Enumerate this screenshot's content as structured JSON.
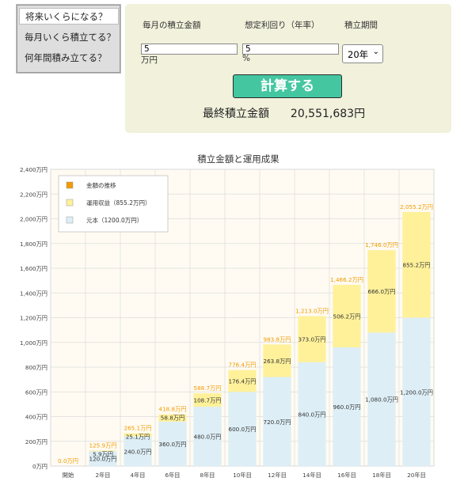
{
  "tabs": [
    "将来いくらになる？",
    "毎月いくら積立てる？",
    "何年間積み立てる？"
  ],
  "form": {
    "monthly_label": "毎月の積立金額",
    "rate_label": "想定利回り（年率）",
    "period_label": "積立期間",
    "monthly_value": "5",
    "monthly_unit": "万円",
    "rate_value": "5",
    "rate_unit": "%",
    "period_value": "20年",
    "calc_button": "計算する",
    "result_label": "最終積立金額",
    "result_value": "20,551,683円"
  },
  "chart_data": {
    "type": "bar",
    "title": "積立金額と運用成果",
    "categories": [
      "開始",
      "2年目",
      "4年目",
      "6年目",
      "8年目",
      "10年目",
      "12年目",
      "14年目",
      "16年目",
      "18年目",
      "20年目"
    ],
    "ylim": [
      0,
      2400
    ],
    "yticks": [
      0,
      200,
      400,
      600,
      800,
      1000,
      1200,
      1400,
      1600,
      1800,
      2000,
      2200,
      2400
    ],
    "ytick_labels": [
      "0万円",
      "200万円",
      "400万円",
      "600万円",
      "800万円",
      "1,000万円",
      "1,200万円",
      "1,400万円",
      "1,600万円",
      "1,800万円",
      "2,000万円",
      "2,200万円",
      "2,400万円"
    ],
    "grid": true,
    "legend_position": "top-left",
    "series": [
      {
        "name": "元本（1200.0万円）",
        "color": "#ddeef6",
        "values": [
          0,
          120,
          240,
          360,
          480,
          600,
          720,
          840,
          960,
          1080,
          1200
        ],
        "labels": [
          "",
          "120.0万円",
          "240.0万円",
          "360.0万円",
          "480.0万円",
          "600.0万円",
          "720.0万円",
          "840.0万円",
          "960.0万円",
          "1,080.0万円",
          "1,200.0万円"
        ]
      },
      {
        "name": "運用収益（855.2万円）",
        "color": "#fff19a",
        "values": [
          0,
          5.9,
          25.1,
          58.8,
          108.7,
          176.4,
          263.8,
          373.0,
          506.2,
          666.0,
          855.2
        ],
        "labels": [
          "",
          "5.9万円",
          "25.1万円",
          "58.8万円",
          "108.7万円",
          "176.4万円",
          "263.8万円",
          "373.0万円",
          "506.2万円",
          "666.0万円",
          "855.2万円"
        ]
      }
    ],
    "total_series": {
      "name": "金額の推移",
      "color": "#f29a00",
      "labels": [
        "0.0万円",
        "125.9万円",
        "265.1万円",
        "418.8万円",
        "588.7万円",
        "776.4万円",
        "983.8万円",
        "1,213.0万円",
        "1,466.2万円",
        "1,746.0万円",
        "2,055.2万円"
      ]
    }
  }
}
